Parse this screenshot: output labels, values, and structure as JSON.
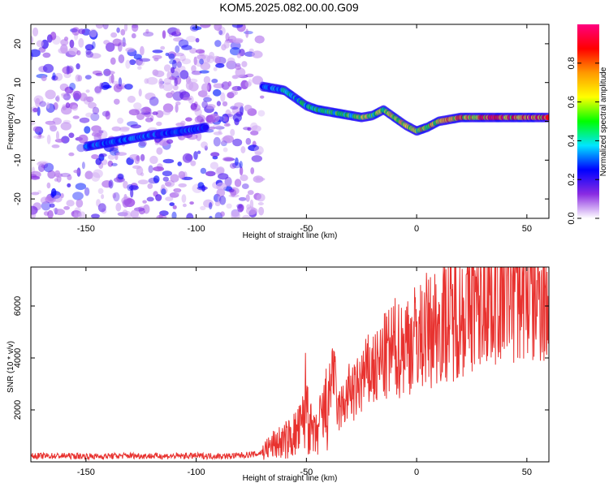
{
  "title": "KOM5.2025.082.00.00.G09",
  "chart_data": [
    {
      "type": "heatmap",
      "xlabel": "Height of straight line (km)",
      "ylabel": "Frequency (Hz)",
      "xlim": [
        -175,
        60
      ],
      "ylim": [
        -25,
        25
      ],
      "xticks": [
        -150,
        -100,
        -50,
        0,
        50
      ],
      "yticks": [
        20,
        10,
        0,
        -10,
        -20
      ],
      "noise_region_x": [
        -175,
        -70
      ],
      "ridge": {
        "x": [
          -150,
          -140,
          -130,
          -120,
          -110,
          -100,
          -95,
          -70,
          -65,
          -60,
          -55,
          -50,
          -45,
          -40,
          -35,
          -30,
          -25,
          -20,
          -15,
          -10,
          -5,
          0,
          5,
          10,
          15,
          20,
          25,
          30,
          35,
          40,
          45,
          50,
          55,
          60
        ],
        "y": [
          -6.5,
          -5.5,
          -4.5,
          -3.5,
          -2.8,
          -2,
          -1.5,
          9,
          8.5,
          8,
          6,
          4,
          3,
          2.5,
          2,
          1.5,
          1,
          1.5,
          3,
          1,
          -1,
          -2.5,
          -1.5,
          0,
          0.5,
          1,
          1,
          1,
          1,
          1,
          1,
          1,
          1,
          1
        ]
      },
      "colorbar": {
        "label": "Normalized spectral amplitude",
        "ticks": [
          0.0,
          0.2,
          0.4,
          0.6,
          0.8
        ],
        "range": [
          0,
          1
        ],
        "colors": [
          "#ffffff",
          "#8a2be2",
          "#0000ff",
          "#00e5ff",
          "#00ff00",
          "#ffff00",
          "#ff9900",
          "#ff0000",
          "#ff0080"
        ]
      }
    },
    {
      "type": "line",
      "xlabel": "Height of straight line (km)",
      "ylabel": "SNR (10 * v/v)",
      "xlim": [
        -175,
        60
      ],
      "ylim": [
        0,
        7500
      ],
      "xticks": [
        -150,
        -100,
        -50,
        0,
        50
      ],
      "yticks": [
        2000,
        4000,
        6000
      ],
      "color": "#e8322f",
      "series": [
        {
          "x": [
            -175,
            -160,
            -145,
            -130,
            -115,
            -100,
            -85,
            -72,
            -68,
            -64,
            -60,
            -56,
            -52,
            -50,
            -48,
            -46,
            -44,
            -42,
            -40,
            -38,
            -36,
            -34,
            -32,
            -30,
            -28,
            -26,
            -24,
            -22,
            -20,
            -18,
            -16,
            -14,
            -12,
            -10,
            -8,
            -6,
            -4,
            -2,
            0,
            2,
            4,
            6,
            8,
            10,
            12,
            14,
            16,
            18,
            20,
            22,
            24,
            26,
            28,
            30,
            32,
            34,
            36,
            38,
            40,
            42,
            44,
            46,
            48,
            50,
            52,
            54,
            56,
            58,
            60
          ],
          "y": [
            220,
            230,
            210,
            240,
            220,
            230,
            220,
            300,
            500,
            700,
            800,
            1000,
            1300,
            2600,
            1200,
            900,
            1400,
            1800,
            2200,
            3900,
            1900,
            2100,
            2400,
            2800,
            2600,
            3000,
            3300,
            3400,
            3600,
            3500,
            3900,
            4000,
            4200,
            4400,
            4300,
            4500,
            4700,
            4600,
            4900,
            4800,
            5100,
            5000,
            5300,
            5200,
            5500,
            5600,
            5400,
            5800,
            5700,
            5900,
            6100,
            6200,
            6000,
            6300,
            6500,
            6400,
            6700,
            6500,
            6800,
            7000,
            6600,
            6900,
            6700,
            6500,
            6600,
            6400,
            6800,
            6300,
            6100
          ]
        }
      ]
    }
  ]
}
